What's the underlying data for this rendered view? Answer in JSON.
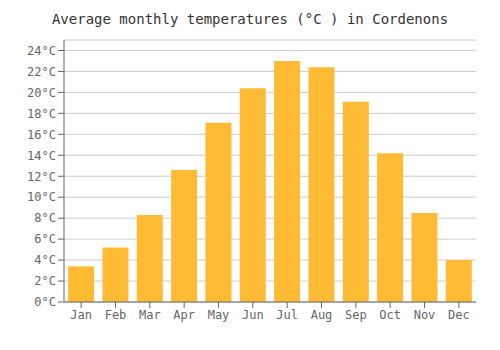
{
  "chart_data": {
    "type": "bar",
    "title": "Average monthly temperatures (°C ) in Cordenons",
    "categories": [
      "Jan",
      "Feb",
      "Mar",
      "Apr",
      "May",
      "Jun",
      "Jul",
      "Aug",
      "Sep",
      "Oct",
      "Nov",
      "Dec"
    ],
    "values": [
      3.4,
      5.2,
      8.3,
      12.6,
      17.1,
      20.4,
      23.0,
      22.4,
      19.1,
      14.2,
      8.5,
      4.0
    ],
    "color": "#FFBB33",
    "ylim": [
      0,
      25
    ],
    "yticks": [
      {
        "value": 0,
        "label": "0°C"
      },
      {
        "value": 2,
        "label": "2°C"
      },
      {
        "value": 4,
        "label": "4°C"
      },
      {
        "value": 6,
        "label": "6°C"
      },
      {
        "value": 8,
        "label": "8°C"
      },
      {
        "value": 10,
        "label": "10°C"
      },
      {
        "value": 12,
        "label": "12°C"
      },
      {
        "value": 14,
        "label": "14°C"
      },
      {
        "value": 16,
        "label": "16°C"
      },
      {
        "value": 18,
        "label": "18°C"
      },
      {
        "value": 20,
        "label": "20°C"
      },
      {
        "value": 22,
        "label": "22°C"
      },
      {
        "value": 24,
        "label": "24°C"
      }
    ],
    "grid": true
  }
}
